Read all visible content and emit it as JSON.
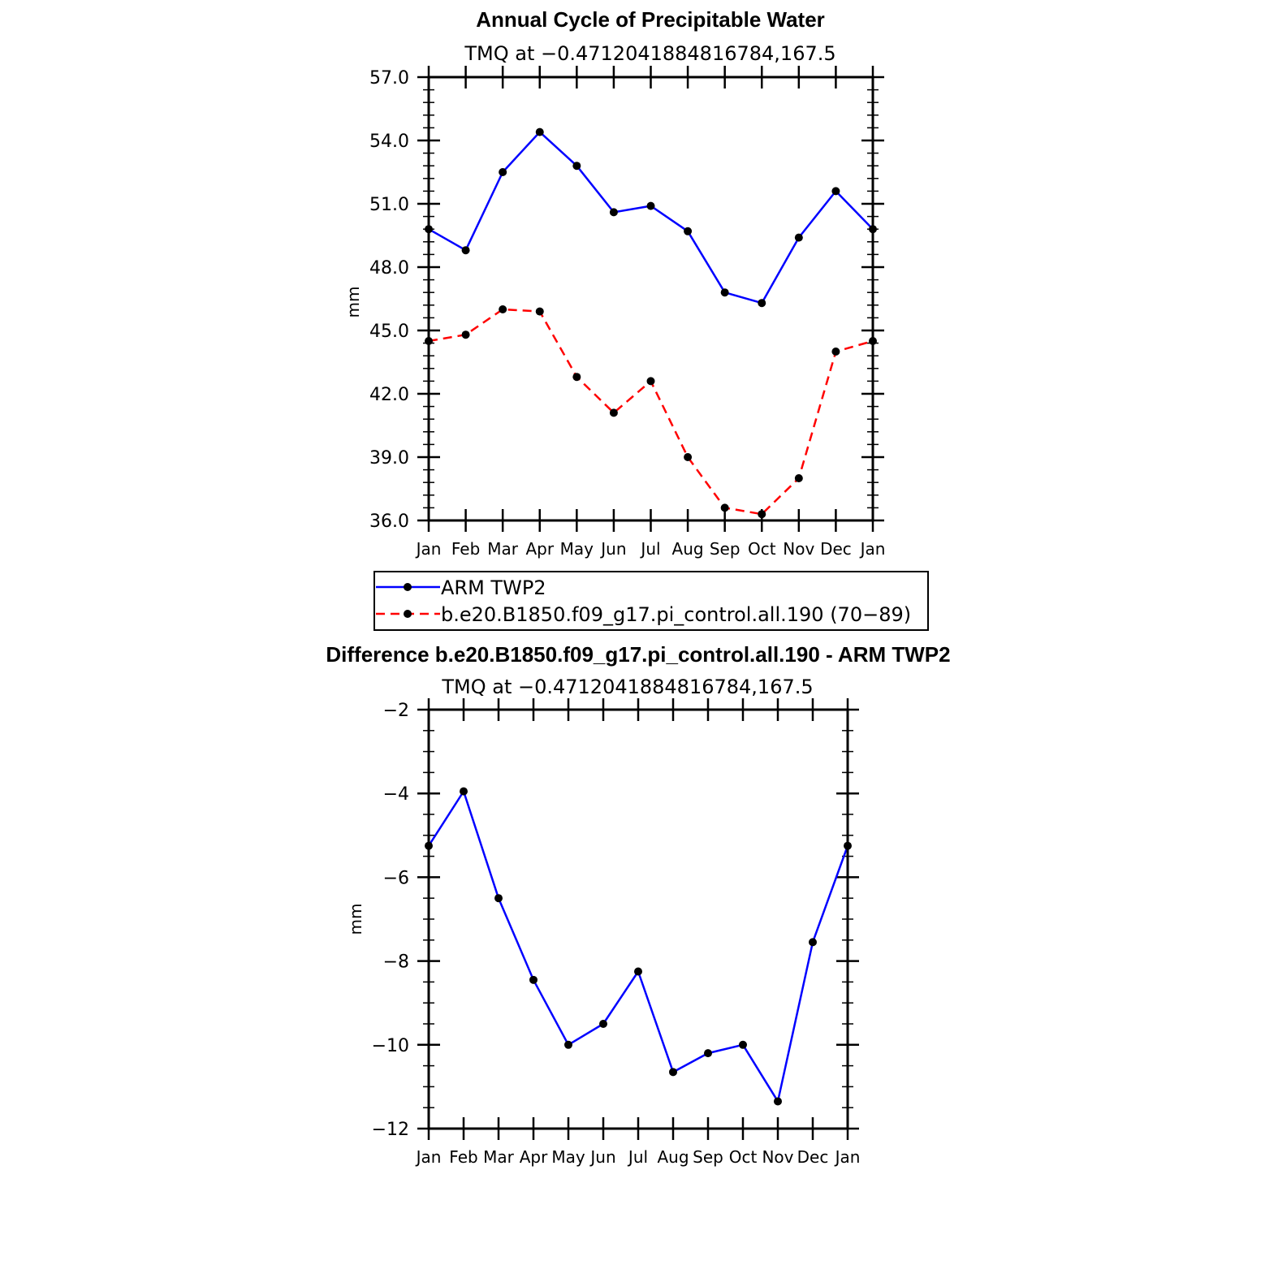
{
  "chart_data": [
    {
      "type": "line",
      "title": "Annual Cycle of Precipitable Water",
      "subtitle": "TMQ at −0.4712041884816784,167.5",
      "ylabel": "mm",
      "xlabel": "",
      "ylim": [
        36,
        57
      ],
      "yticks": [
        "36.0",
        "39.0",
        "42.0",
        "45.0",
        "48.0",
        "51.0",
        "54.0",
        "57.0"
      ],
      "ytick_values": [
        36,
        39,
        42,
        45,
        48,
        51,
        54,
        57
      ],
      "categories": [
        "Jan",
        "Feb",
        "Mar",
        "Apr",
        "May",
        "Jun",
        "Jul",
        "Aug",
        "Sep",
        "Oct",
        "Nov",
        "Dec",
        "Jan"
      ],
      "grid": false,
      "legend_placement": "below",
      "series": [
        {
          "name": "ARM TWP2",
          "color": "#0000ff",
          "style": "solid",
          "values": [
            49.8,
            48.8,
            52.5,
            54.4,
            52.8,
            50.6,
            50.9,
            49.7,
            46.8,
            46.3,
            49.4,
            51.6,
            49.8
          ]
        },
        {
          "name": "b.e20.B1850.f09_g17.pi_control.all.190 (70−89)",
          "color": "#ff0000",
          "style": "dashed",
          "values": [
            44.5,
            44.8,
            46.0,
            45.9,
            42.8,
            41.1,
            42.6,
            39.0,
            36.6,
            36.3,
            38.0,
            44.0,
            44.5
          ]
        }
      ]
    },
    {
      "type": "line",
      "title": "Difference b.e20.B1850.f09_g17.pi_control.all.190 - ARM TWP2",
      "subtitle": "TMQ at −0.4712041884816784,167.5",
      "ylabel": "mm",
      "xlabel": "",
      "ylim": [
        -12,
        -2
      ],
      "yticks": [
        "−12",
        "−10",
        "−8",
        "−6",
        "−4",
        "−2"
      ],
      "ytick_values": [
        -12,
        -10,
        -8,
        -6,
        -4,
        -2
      ],
      "categories": [
        "Jan",
        "Feb",
        "Mar",
        "Apr",
        "May",
        "Jun",
        "Jul",
        "Aug",
        "Sep",
        "Oct",
        "Nov",
        "Dec",
        "Jan"
      ],
      "grid": false,
      "series": [
        {
          "color": "#0000ff",
          "style": "solid",
          "values": [
            -5.25,
            -3.95,
            -6.5,
            -8.45,
            -10.0,
            -9.5,
            -8.25,
            -10.65,
            -10.2,
            -10.0,
            -11.35,
            -7.55,
            -5.25
          ]
        }
      ]
    }
  ]
}
